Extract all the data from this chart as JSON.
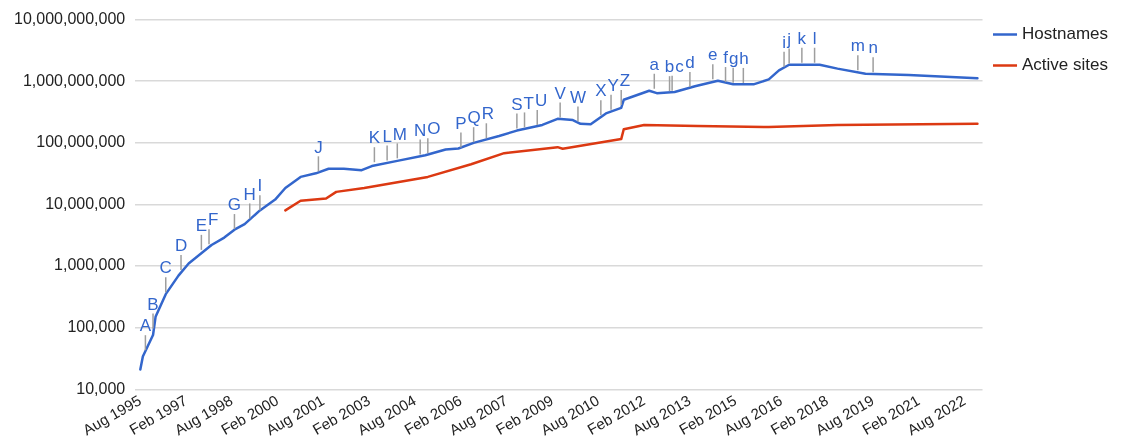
{
  "chart_data": {
    "type": "line",
    "log": "y",
    "grid": "y",
    "legend": "right",
    "marker": "none",
    "line_style": "solid",
    "xlim": [
      "1995-06",
      "2023-03"
    ],
    "xticks": [
      {
        "value": "1995-08",
        "label": "Aug 1995"
      },
      {
        "value": "1997-02",
        "label": "Feb 1997"
      },
      {
        "value": "1998-08",
        "label": "Aug 1998"
      },
      {
        "value": "2000-02",
        "label": "Feb 2000"
      },
      {
        "value": "2001-08",
        "label": "Aug 2001"
      },
      {
        "value": "2003-02",
        "label": "Feb 2003"
      },
      {
        "value": "2004-08",
        "label": "Aug 2004"
      },
      {
        "value": "2006-02",
        "label": "Feb 2006"
      },
      {
        "value": "2007-08",
        "label": "Aug 2007"
      },
      {
        "value": "2009-02",
        "label": "Feb 2009"
      },
      {
        "value": "2010-08",
        "label": "Aug 2010"
      },
      {
        "value": "2012-02",
        "label": "Feb 2012"
      },
      {
        "value": "2013-08",
        "label": "Aug 2013"
      },
      {
        "value": "2015-02",
        "label": "Feb 2015"
      },
      {
        "value": "2016-08",
        "label": "Aug 2016"
      },
      {
        "value": "2018-02",
        "label": "Feb 2018"
      },
      {
        "value": "2019-08",
        "label": "Aug 2019"
      },
      {
        "value": "2021-02",
        "label": "Feb 2021"
      },
      {
        "value": "2022-08",
        "label": "Aug 2022"
      }
    ],
    "ylim": [
      10000,
      10000000000
    ],
    "yticks": [
      {
        "value": 10000,
        "label": "10,000"
      },
      {
        "value": 100000,
        "label": "100,000"
      },
      {
        "value": 1000000,
        "label": "1,000,000"
      },
      {
        "value": 10000000,
        "label": "10,000,000"
      },
      {
        "value": 100000000,
        "label": "100,000,000"
      },
      {
        "value": 1000000000,
        "label": "1,000,000,000"
      },
      {
        "value": 10000000000,
        "label": "10,000,000,000"
      }
    ],
    "series": [
      {
        "name": "Hostnames",
        "color": "#3366cc",
        "x": [
          "1995-08",
          "1995-09",
          "1996-01",
          "1996-02",
          "1996-06",
          "1996-11",
          "1997-03",
          "1997-12",
          "1998-05",
          "1998-09",
          "1999-01",
          "1999-07",
          "2000-01",
          "2000-05",
          "2000-11",
          "2001-05",
          "2001-10",
          "2002-04",
          "2002-11",
          "2003-03",
          "2004-01",
          "2004-12",
          "2005-08",
          "2006-01",
          "2006-07",
          "2007-05",
          "2007-12",
          "2008-10",
          "2009-04",
          "2009-10",
          "2010-01",
          "2010-05",
          "2010-11",
          "2011-05",
          "2011-06",
          "2012-04",
          "2012-07",
          "2013-02",
          "2013-10",
          "2014-07",
          "2015-01",
          "2015-09",
          "2016-03",
          "2016-07",
          "2016-11",
          "2017-11",
          "2018-06",
          "2019-05",
          "2020-10",
          "2023-01"
        ],
        "values": [
          21000,
          34000,
          76000,
          150000,
          350000,
          700000,
          1100000,
          2200000,
          2900000,
          3900000,
          4800000,
          8000000,
          12000000,
          18500000,
          28000000,
          32000000,
          38000000,
          38000000,
          36000000,
          42000000,
          51000000,
          63000000,
          78000000,
          81000000,
          100000000,
          129000000,
          158000000,
          195000000,
          245000000,
          234000000,
          204000000,
          200000000,
          300000000,
          370000000,
          500000000,
          700000000,
          640000000,
          670000000,
          830000000,
          1020000000,
          890000000,
          890000000,
          1070000000,
          1500000000,
          1850000000,
          1850000000,
          1600000000,
          1320000000,
          1260000000,
          1120000000
        ]
      },
      {
        "name": "Active sites",
        "color": "#dc3912",
        "x": [
          "2000-05",
          "2000-11",
          "2001-09",
          "2002-01",
          "2002-12",
          "2005-01",
          "2006-06",
          "2007-07",
          "2009-04",
          "2009-06",
          "2011-05",
          "2011-06",
          "2012-02",
          "2013-11",
          "2016-03",
          "2018-06",
          "2023-01"
        ],
        "values": [
          8000000,
          11500000,
          12500000,
          16000000,
          18500000,
          28000000,
          45000000,
          68000000,
          85000000,
          80000000,
          115000000,
          166000000,
          195000000,
          187000000,
          180000000,
          195000000,
          204000000
        ]
      }
    ],
    "annotations": [
      {
        "text": "A",
        "x": "1995-10",
        "y": 40000
      },
      {
        "text": "B",
        "x": "1996-01",
        "y": 90000
      },
      {
        "text": "C",
        "x": "1996-06",
        "y": 350000
      },
      {
        "text": "D",
        "x": "1996-12",
        "y": 800000
      },
      {
        "text": "E",
        "x": "1997-08",
        "y": 1700000
      },
      {
        "text": "F",
        "x": "1997-11",
        "y": 2100000
      },
      {
        "text": "G",
        "x": "1998-09",
        "y": 3700000
      },
      {
        "text": "H",
        "x": "1999-03",
        "y": 5500000
      },
      {
        "text": "I",
        "x": "1999-07",
        "y": 7500000
      },
      {
        "text": "J",
        "x": "2001-06",
        "y": 32000000
      },
      {
        "text": "K",
        "x": "2003-04",
        "y": 45000000
      },
      {
        "text": "L",
        "x": "2003-09",
        "y": 48000000
      },
      {
        "text": "M",
        "x": "2004-01",
        "y": 52000000
      },
      {
        "text": "N",
        "x": "2004-10",
        "y": 60000000
      },
      {
        "text": "O",
        "x": "2005-01",
        "y": 63000000
      },
      {
        "text": "P",
        "x": "2006-02",
        "y": 78000000
      },
      {
        "text": "Q",
        "x": "2006-07",
        "y": 95000000
      },
      {
        "text": "R",
        "x": "2006-12",
        "y": 110000000
      },
      {
        "text": "S",
        "x": "2007-12",
        "y": 158000000
      },
      {
        "text": "T",
        "x": "2008-03",
        "y": 165000000
      },
      {
        "text": "U",
        "x": "2008-08",
        "y": 180000000
      },
      {
        "text": "V",
        "x": "2009-05",
        "y": 240000000
      },
      {
        "text": "W",
        "x": "2009-12",
        "y": 205000000
      },
      {
        "text": "X",
        "x": "2010-09",
        "y": 260000000
      },
      {
        "text": "Y",
        "x": "2011-01",
        "y": 320000000
      },
      {
        "text": "Z",
        "x": "2011-05",
        "y": 380000000
      },
      {
        "text": "a",
        "x": "2012-06",
        "y": 700000000
      },
      {
        "text": "b",
        "x": "2012-12",
        "y": 640000000
      },
      {
        "text": "c",
        "x": "2013-01",
        "y": 650000000
      },
      {
        "text": "d",
        "x": "2013-08",
        "y": 750000000
      },
      {
        "text": "e",
        "x": "2014-05",
        "y": 1000000000
      },
      {
        "text": "f",
        "x": "2014-10",
        "y": 900000000
      },
      {
        "text": "g",
        "x": "2015-01",
        "y": 880000000
      },
      {
        "text": "h",
        "x": "2015-05",
        "y": 870000000
      },
      {
        "text": "i",
        "x": "2016-09",
        "y": 1600000000
      },
      {
        "text": "j",
        "x": "2016-11",
        "y": 1800000000
      },
      {
        "text": "k",
        "x": "2017-04",
        "y": 1850000000
      },
      {
        "text": "l",
        "x": "2017-09",
        "y": 1850000000
      },
      {
        "text": "m",
        "x": "2019-02",
        "y": 1400000000
      },
      {
        "text": "n",
        "x": "2019-08",
        "y": 1300000000
      }
    ]
  }
}
